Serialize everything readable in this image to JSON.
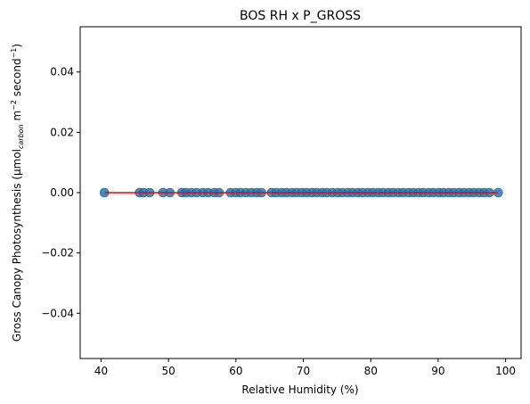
{
  "chart_data": {
    "type": "scatter",
    "title": "BOS RH x P_GROSS",
    "xlabel": "Relative Humidity (%)",
    "ylabel_parts": {
      "main": "Gross Canopy Photosynthesis (μmol",
      "sub": "carbon",
      "mid": " m",
      "sup1": "−2",
      "mid2": " second",
      "sup2": "−1",
      "end": ")"
    },
    "xlim": [
      36.9,
      102.3
    ],
    "ylim": [
      -0.055,
      0.055
    ],
    "xticks": [
      40,
      50,
      60,
      70,
      80,
      90,
      100
    ],
    "xtick_labels": [
      "40",
      "50",
      "60",
      "70",
      "80",
      "90",
      "100"
    ],
    "yticks": [
      -0.04,
      -0.02,
      0.0,
      0.02,
      0.04
    ],
    "ytick_labels": [
      "−0.04",
      "−0.02",
      "0.00",
      "0.02",
      "0.04"
    ],
    "grid": false,
    "point_color": "#1f77b4",
    "fit_line_color": "#ff0000",
    "points": {
      "x": [
        40.5,
        45.7,
        46.3,
        47.2,
        49.2,
        50.2,
        52.0,
        52.6,
        53.4,
        54.2,
        55.1,
        55.9,
        56.8,
        57.5,
        59.2,
        60.0,
        60.7,
        61.5,
        62.3,
        63.1,
        63.8,
        65.3,
        66.0,
        66.8,
        67.5,
        68.3,
        69.0,
        69.8,
        70.5,
        71.3,
        72.0,
        72.8,
        73.5,
        74.3,
        75.1,
        75.8,
        76.6,
        77.3,
        78.1,
        78.8,
        79.6,
        80.3,
        81.1,
        81.8,
        82.6,
        83.3,
        84.1,
        84.8,
        85.6,
        86.3,
        87.1,
        87.8,
        88.6,
        89.3,
        90.1,
        90.8,
        91.6,
        92.3,
        93.1,
        93.8,
        94.6,
        95.3,
        96.1,
        96.8,
        97.6,
        98.9
      ],
      "y": [
        0,
        0,
        0,
        0,
        0,
        0,
        0,
        0,
        0,
        0,
        0,
        0,
        0,
        0,
        0,
        0,
        0,
        0,
        0,
        0,
        0,
        0,
        0,
        0,
        0,
        0,
        0,
        0,
        0,
        0,
        0,
        0,
        0,
        0,
        0,
        0,
        0,
        0,
        0,
        0,
        0,
        0,
        0,
        0,
        0,
        0,
        0,
        0,
        0,
        0,
        0,
        0,
        0,
        0,
        0,
        0,
        0,
        0,
        0,
        0,
        0,
        0,
        0,
        0,
        0,
        0
      ]
    },
    "fit_line": {
      "x": [
        40.5,
        98.9
      ],
      "y": [
        0.0,
        0.0
      ]
    }
  }
}
